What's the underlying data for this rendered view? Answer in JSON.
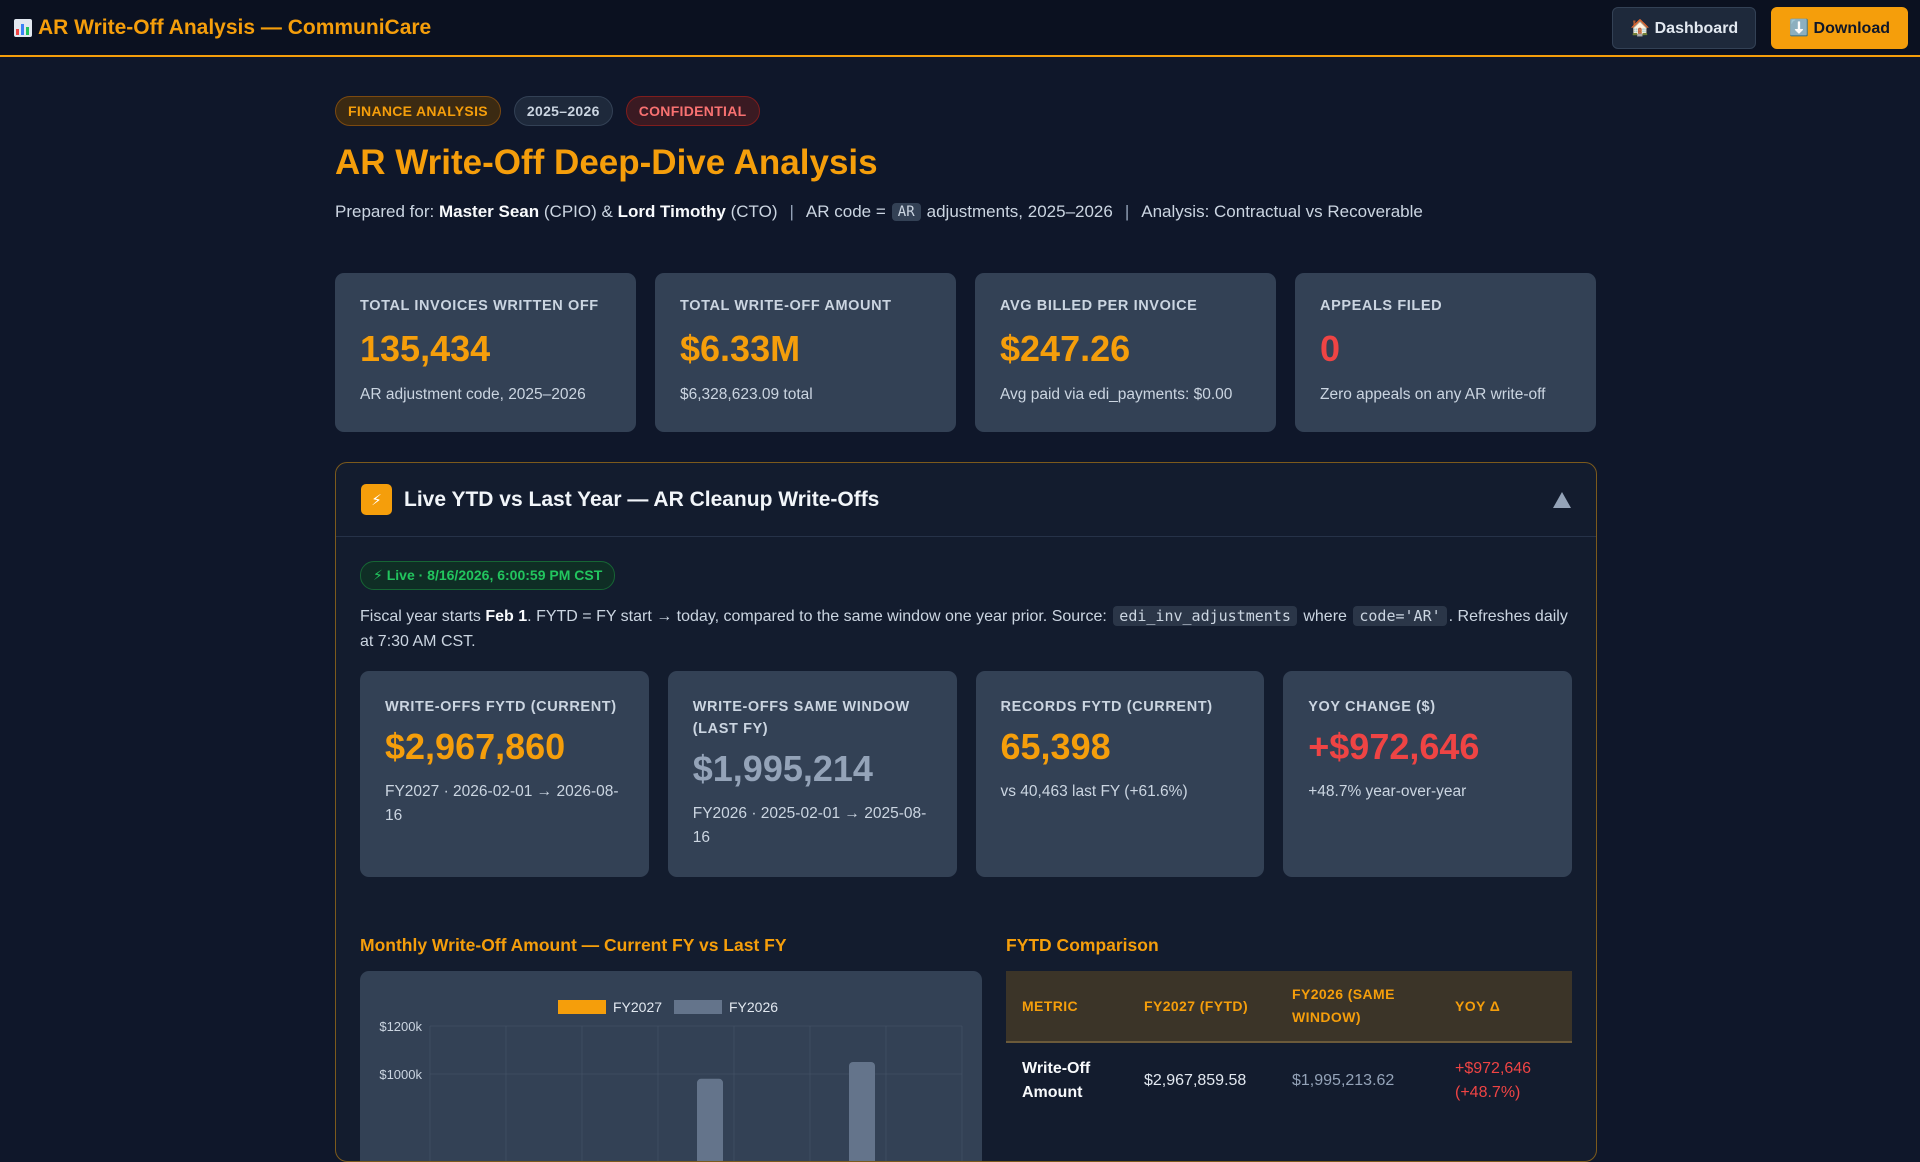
{
  "topbar": {
    "title": "AR Write-Off Analysis — CommuniCare",
    "icon": "bar-chart-icon",
    "dashboard_label": "🏠 Dashboard",
    "download_label": "⬇️ Download"
  },
  "tags": [
    "FINANCE ANALYSIS",
    "2025–2026",
    "CONFIDENTIAL"
  ],
  "page_title": "AR Write-Off Deep-Dive Analysis",
  "prepared": {
    "prefix": "Prepared for:",
    "person1": "Master Sean",
    "role1": "(CPIO) &",
    "person2": "Lord Timothy",
    "role2": "(CTO)",
    "ar_prefix": "AR code =",
    "ar_code": "AR",
    "ar_suffix": "adjustments, 2025–2026",
    "analysis": "Analysis: Contractual vs Recoverable"
  },
  "stats": [
    {
      "label": "TOTAL INVOICES WRITTEN OFF",
      "value": "135,434",
      "sub": "AR adjustment code, 2025–2026"
    },
    {
      "label": "TOTAL WRITE-OFF AMOUNT",
      "value": "$6.33M",
      "sub": "$6,328,623.09 total"
    },
    {
      "label": "AVG BILLED PER INVOICE",
      "value": "$247.26",
      "sub": "Avg paid via edi_payments: $0.00"
    },
    {
      "label": "APPEALS FILED",
      "value": "0",
      "sub": "Zero appeals on any AR write-off"
    }
  ],
  "panel": {
    "title": "Live YTD vs Last Year — AR Cleanup Write-Offs",
    "live_badge": "⚡ Live · 8/16/2026, 6:00:59 PM CST",
    "desc_1": "Fiscal year starts",
    "desc_bold": "Feb 1",
    "desc_2": ". FYTD = FY start → today, compared to the same window one year prior. Source:",
    "desc_code1": "edi_inv_adjustments",
    "desc_3": "where",
    "desc_code2": "code='AR'",
    "desc_4": ". Refreshes daily at 7:30 AM CST."
  },
  "kpis": [
    {
      "label": "WRITE-OFFS FYTD (CURRENT)",
      "value": "$2,967,860",
      "sub": "FY2027 · 2026-02-01 → 2026-08-16"
    },
    {
      "label": "WRITE-OFFS SAME WINDOW (LAST FY)",
      "value": "$1,995,214",
      "sub": "FY2026 · 2025-02-01 → 2025-08-16"
    },
    {
      "label": "RECORDS FYTD (CURRENT)",
      "value": "65,398",
      "sub": "vs 40,463 last FY (+61.6%)"
    },
    {
      "label": "YOY CHANGE ($)",
      "value": "+$972,646",
      "sub": "+48.7% year-over-year"
    }
  ],
  "chart_section_title": "Monthly Write-Off Amount — Current FY vs Last FY",
  "table_section_title": "FYTD Comparison",
  "chart_data": {
    "type": "bar",
    "series": [
      {
        "name": "FY2027",
        "color": "#f59e0b",
        "values": [
          null,
          null,
          null,
          null,
          null,
          null,
          null
        ]
      },
      {
        "name": "FY2026",
        "color": "#64748b",
        "values": [
          null,
          null,
          null,
          980,
          null,
          1050,
          null
        ]
      }
    ],
    "yticks": [
      "$1200k",
      "$1000k"
    ],
    "ylim": [
      0,
      1200
    ],
    "grid": true,
    "legend": "top-center"
  },
  "table": {
    "headers": [
      "METRIC",
      "FY2027 (FYTD)",
      "FY2026 (SAME WINDOW)",
      "YOY Δ"
    ],
    "rows": [
      {
        "metric": "Write-Off Amount",
        "current": "$2,967,859.58",
        "last": "$1,995,213.62",
        "delta": "+$972,646 (+48.7%)"
      }
    ]
  },
  "colors": {
    "accent": "#f59e0b",
    "bg": "#0f172a",
    "card": "#334155",
    "red": "#ef4444",
    "green": "#22c55e"
  }
}
